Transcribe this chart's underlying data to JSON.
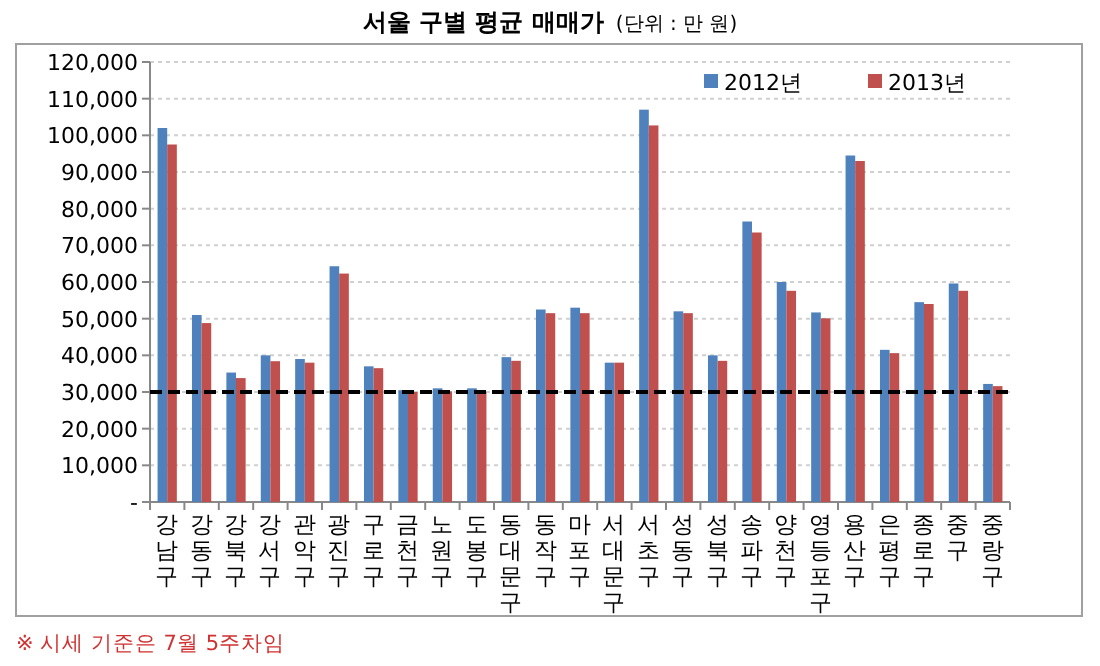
{
  "chart_data": {
    "type": "bar",
    "title": "서울 구별 평균 매매가",
    "subtitle": "(단위 : 만 원)",
    "categories": [
      "강남구",
      "강동구",
      "강북구",
      "강서구",
      "관악구",
      "광진구",
      "구로구",
      "금천구",
      "노원구",
      "도봉구",
      "동대문구",
      "동작구",
      "마포구",
      "서대문구",
      "서초구",
      "성동구",
      "성북구",
      "송파구",
      "양천구",
      "영등포구",
      "용산구",
      "은평구",
      "종로구",
      "중구",
      "중랑구"
    ],
    "series": [
      {
        "name": "2012년",
        "color": "#4f81bd",
        "values": [
          102000,
          51000,
          35300,
          40000,
          39000,
          64300,
          37000,
          30500,
          31000,
          31000,
          39500,
          52500,
          53000,
          38000,
          107000,
          52000,
          40000,
          76500,
          60000,
          51700,
          94500,
          41500,
          54500,
          59600,
          32200
        ]
      },
      {
        "name": "2013년",
        "color": "#c0504d",
        "values": [
          97500,
          48800,
          33800,
          38400,
          38000,
          62300,
          36500,
          30000,
          30200,
          30000,
          38500,
          51500,
          51500,
          38000,
          102700,
          51500,
          38500,
          73500,
          57600,
          50100,
          93000,
          40600,
          54000,
          57600,
          31600
        ]
      }
    ],
    "ylim": [
      0,
      120000
    ],
    "yticks": [
      {
        "value": 0,
        "label": "-"
      },
      {
        "value": 10000,
        "label": "10,000"
      },
      {
        "value": 20000,
        "label": "20,000"
      },
      {
        "value": 30000,
        "label": "30,000"
      },
      {
        "value": 40000,
        "label": "40,000"
      },
      {
        "value": 50000,
        "label": "50,000"
      },
      {
        "value": 60000,
        "label": "60,000"
      },
      {
        "value": 70000,
        "label": "70,000"
      },
      {
        "value": 80000,
        "label": "80,000"
      },
      {
        "value": 90000,
        "label": "90,000"
      },
      {
        "value": 100000,
        "label": "100,000"
      },
      {
        "value": 110000,
        "label": "110,000"
      },
      {
        "value": 120000,
        "label": "120,000"
      }
    ],
    "grid": "y",
    "legend": "top right",
    "ref_lines": [
      {
        "axis": "y",
        "value": 30000,
        "label": null,
        "color": "#000000",
        "line_style": "dashed"
      }
    ],
    "annotations": [
      "※ 시세 기준은 7월 5주차임"
    ]
  }
}
